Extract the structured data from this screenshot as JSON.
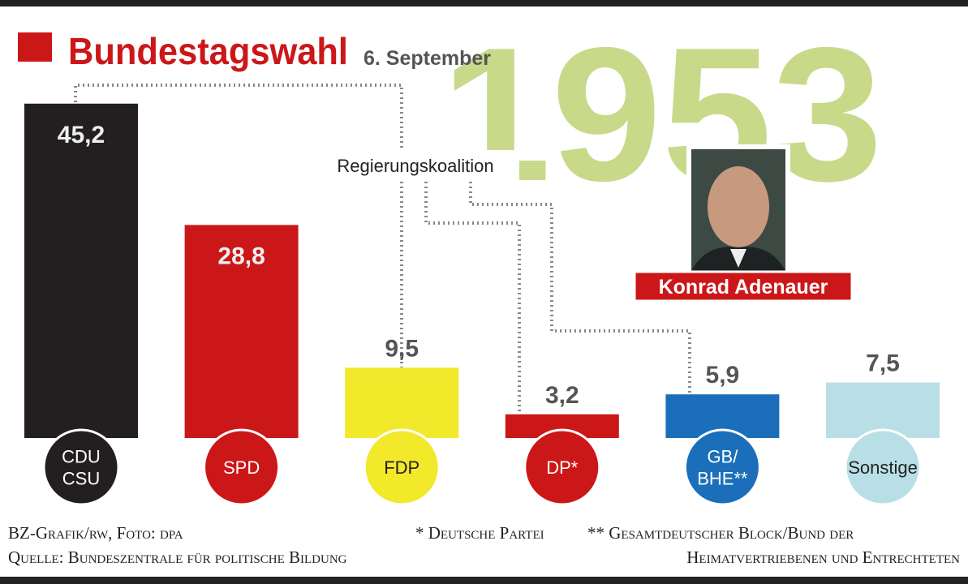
{
  "chart_data": {
    "type": "bar",
    "title": "Bundestagswahl",
    "subtitle": "6. September",
    "year": "1953",
    "annotation": "Regierungskoalition",
    "portrait_caption": "Konrad Adenauer",
    "categories": [
      "CDU\nCSU",
      "SPD",
      "FDP",
      "DP*",
      "GB/\nBHE**",
      "Sonstige"
    ],
    "values": [
      45.2,
      28.8,
      9.5,
      3.2,
      5.9,
      7.5
    ],
    "value_labels": [
      "45,2",
      "28,8",
      "9,5",
      "3,2",
      "5,9",
      "7,5"
    ],
    "colors": [
      "#231f20",
      "#cc1719",
      "#f3e92b",
      "#cc1719",
      "#1b6fba",
      "#b9dfe6"
    ],
    "footnotes": {
      "credit": "BZ-Grafik/rw, Foto: dpa",
      "source": "Quelle: Bundeszentrale für politische Bildung",
      "note_dp": "* Deutsche Partei",
      "note_gb": [
        "** Gesamtdeutscher Block/Bund der",
        "Heimatvertriebenen und Entrechteten"
      ]
    }
  }
}
